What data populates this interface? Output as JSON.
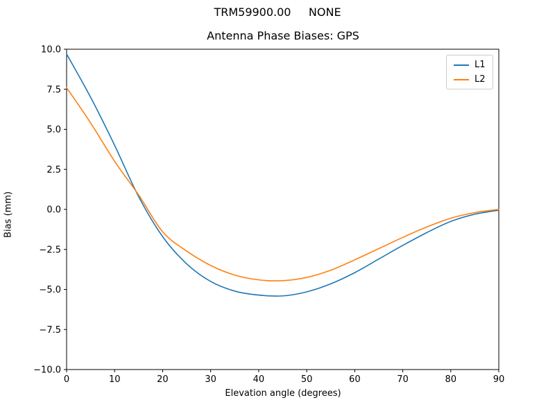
{
  "figure": {
    "suptitle": "TRM59900.00     NONE",
    "title": "Antenna Phase Biases: GPS",
    "xlabel": "Elevation angle (degrees)",
    "ylabel": "Bias (mm)"
  },
  "chart_data": {
    "type": "line",
    "suptitle": "TRM59900.00     NONE",
    "title": "Antenna Phase Biases: GPS",
    "xlabel": "Elevation angle (degrees)",
    "ylabel": "Bias (mm)",
    "xlim": [
      0,
      90
    ],
    "ylim": [
      -10,
      10
    ],
    "xticks": [
      0,
      10,
      20,
      30,
      40,
      50,
      60,
      70,
      80,
      90
    ],
    "yticks": [
      -10,
      -7.5,
      -5,
      -2.5,
      0,
      2.5,
      5,
      7.5,
      10
    ],
    "grid": false,
    "legend_position": "upper right",
    "x": [
      0,
      5,
      10,
      15,
      20,
      25,
      30,
      35,
      40,
      45,
      50,
      55,
      60,
      65,
      70,
      75,
      80,
      85,
      90
    ],
    "series": [
      {
        "name": "L1",
        "color": "#1f77b4",
        "values": [
          9.7,
          7.0,
          4.0,
          0.8,
          -1.7,
          -3.4,
          -4.5,
          -5.1,
          -5.35,
          -5.4,
          -5.15,
          -4.65,
          -3.95,
          -3.1,
          -2.25,
          -1.45,
          -0.75,
          -0.3,
          -0.05
        ]
      },
      {
        "name": "L2",
        "color": "#ff7f0e",
        "values": [
          7.6,
          5.4,
          3.0,
          0.9,
          -1.4,
          -2.6,
          -3.5,
          -4.1,
          -4.4,
          -4.45,
          -4.25,
          -3.8,
          -3.15,
          -2.45,
          -1.75,
          -1.1,
          -0.55,
          -0.2,
          0.0
        ]
      }
    ]
  }
}
